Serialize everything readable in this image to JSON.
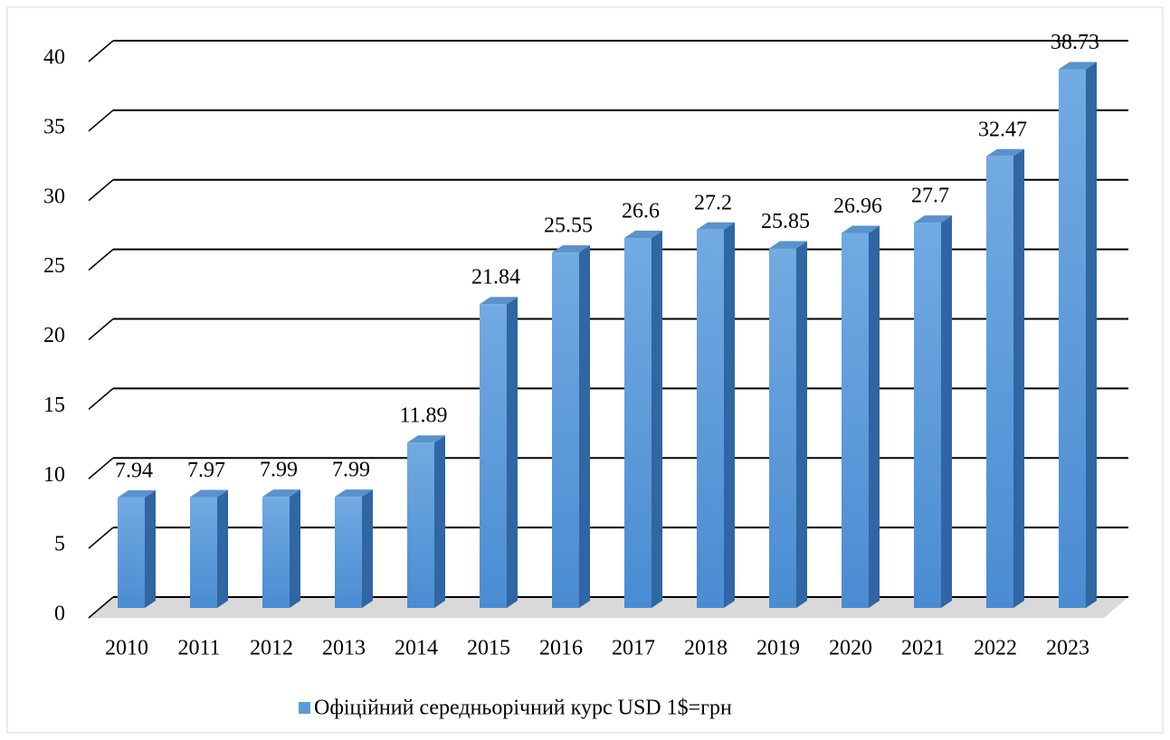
{
  "chart_data": {
    "type": "bar3d",
    "categories": [
      "2010",
      "2011",
      "2012",
      "2013",
      "2014",
      "2015",
      "2016",
      "2017",
      "2018",
      "2019",
      "2020",
      "2021",
      "2022",
      "2023"
    ],
    "series": [
      {
        "name": "Офіційний середньорічний курс USD 1$=грн",
        "color": "#5b9bd5",
        "values": [
          7.94,
          7.97,
          7.99,
          7.99,
          11.89,
          21.84,
          25.55,
          26.6,
          27.2,
          25.85,
          26.96,
          27.7,
          32.47,
          38.73
        ]
      }
    ],
    "ylim": [
      0,
      40
    ],
    "yticks": [
      0,
      5,
      10,
      15,
      20,
      25,
      30,
      35,
      40
    ],
    "grid": true,
    "legend": "bottom"
  }
}
